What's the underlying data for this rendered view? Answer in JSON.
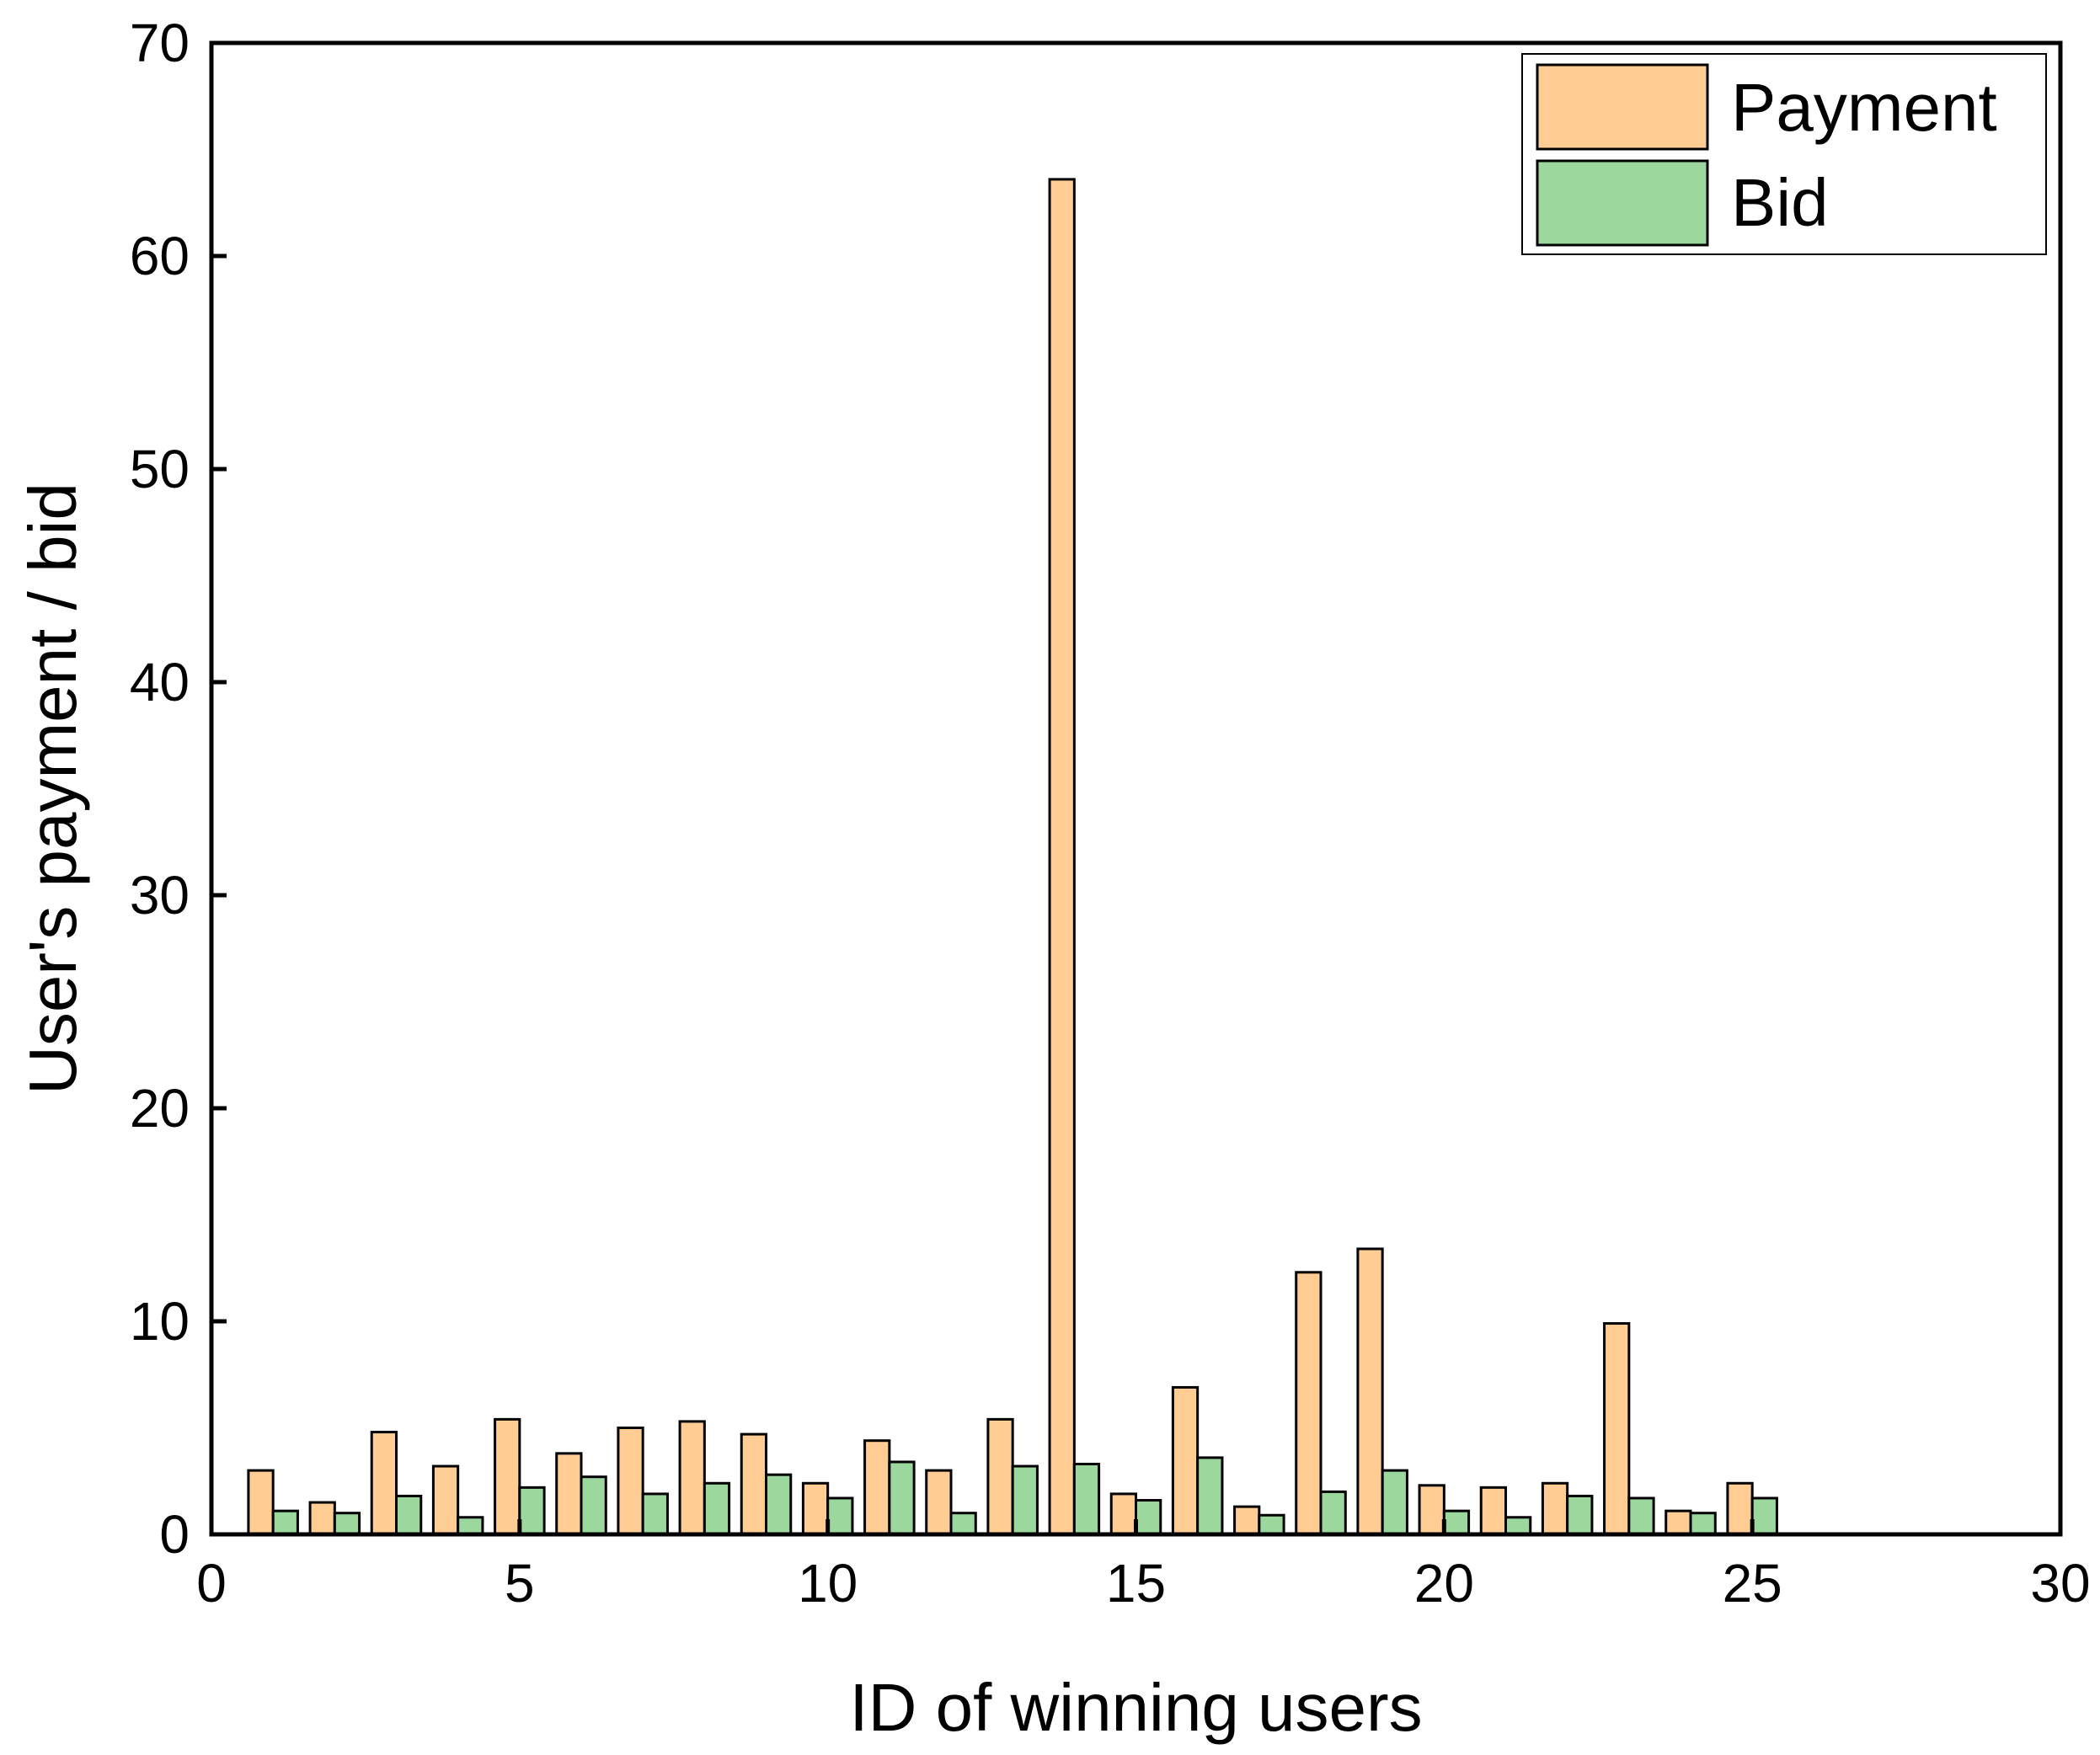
{
  "colors": {
    "payment": "#ffcc93",
    "bid": "#9cd79e",
    "stroke": "#000000"
  },
  "chart_data": {
    "type": "bar",
    "xlabel": "ID of winning users",
    "ylabel": "User's payment / bid",
    "xlim": [
      0,
      30
    ],
    "ylim": [
      0,
      70
    ],
    "xticks": [
      "0",
      "5",
      "10",
      "15",
      "20",
      "25",
      "30"
    ],
    "yticks": [
      "0",
      "10",
      "20",
      "30",
      "40",
      "50",
      "60",
      "70"
    ],
    "legend_position": "top-right",
    "x": [
      1,
      2,
      3,
      4,
      5,
      6,
      7,
      8,
      9,
      10,
      11,
      12,
      13,
      14,
      15,
      16,
      17,
      18,
      19,
      20,
      21,
      22,
      23,
      24,
      25
    ],
    "series": [
      {
        "name": "Payment",
        "values": [
          3.0,
          1.5,
          4.8,
          3.2,
          5.4,
          3.8,
          5.0,
          5.3,
          4.7,
          2.4,
          4.4,
          3.0,
          5.4,
          63.6,
          1.9,
          6.9,
          1.3,
          12.3,
          13.4,
          2.3,
          2.2,
          2.4,
          9.9,
          1.1,
          2.4
        ]
      },
      {
        "name": "Bid",
        "values": [
          1.1,
          1.0,
          1.8,
          0.8,
          2.2,
          2.7,
          1.9,
          2.4,
          2.8,
          1.7,
          3.4,
          1.0,
          3.2,
          3.3,
          1.6,
          3.6,
          0.9,
          2.0,
          3.0,
          1.1,
          0.8,
          1.8,
          1.7,
          1.0,
          1.7
        ]
      }
    ]
  }
}
